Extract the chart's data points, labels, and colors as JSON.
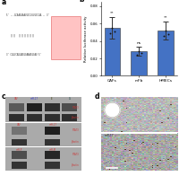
{
  "panel_b": {
    "categories": [
      "CAFs",
      "mFb",
      "HMECs"
    ],
    "values": [
      0.055,
      0.028,
      0.052
    ],
    "errors": [
      0.012,
      0.005,
      0.01
    ],
    "bar_color": "#4472c4",
    "ylabel": "Relative luciferase activity",
    "ylim": [
      0,
      0.085
    ],
    "yticks": [
      0.0,
      0.02,
      0.04,
      0.06,
      0.08
    ],
    "significance": [
      "**",
      "ns",
      "**"
    ]
  },
  "bg_color": "#ffffff",
  "panel_labels": [
    "a",
    "b",
    "c",
    "d"
  ],
  "panel_a": {
    "seq1": "5' ...GCAAGUAAUGCCUUUGCCUA... 3'",
    "seq2": "   ||||  ||||||||||||",
    "seq3": "3' CGUUCAUUACGGAAACGGAU 5'",
    "highlight_color": "#ffaaaa",
    "highlight_edge": "#dd4444"
  },
  "panel_c": {
    "bg_color": "#c8c8c8",
    "band_color_dark": "#1a1a1a",
    "band_color_mid": "#3a3a3a",
    "label_color": "#cc3333"
  },
  "panel_d": {
    "top_bg": "#b8b4a8",
    "bottom_bg": "#a8a090",
    "label_top": "ctrl",
    "label_bottom": "miR-17"
  }
}
